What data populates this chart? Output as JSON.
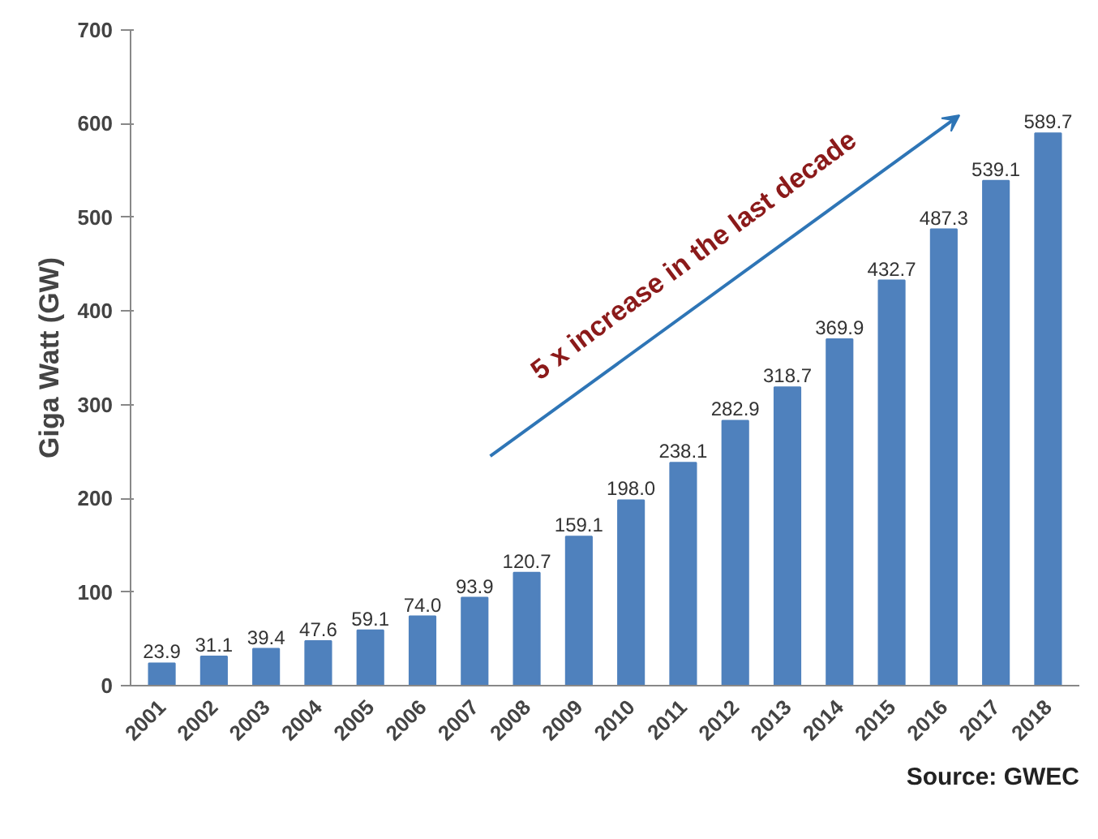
{
  "chart_data": {
    "type": "bar",
    "ylabel": "Giga Watt (GW)",
    "categories": [
      "2001",
      "2002",
      "2003",
      "2004",
      "2005",
      "2006",
      "2007",
      "2008",
      "2009",
      "2010",
      "2011",
      "2012",
      "2013",
      "2014",
      "2015",
      "2016",
      "2017",
      "2018"
    ],
    "values": [
      23.9,
      31.1,
      39.4,
      47.6,
      59.1,
      74.0,
      93.9,
      120.7,
      159.1,
      198.0,
      238.1,
      282.9,
      318.7,
      369.9,
      432.7,
      487.3,
      539.1,
      589.7
    ],
    "color": "#4f81bd",
    "ylim": [
      0,
      700
    ],
    "yticks": [
      0,
      100,
      200,
      300,
      400,
      500,
      600,
      700
    ],
    "grid": false,
    "value_labels": [
      "23.9",
      "31.1",
      "39.4",
      "47.6",
      "59.1",
      "74.0",
      "93.9",
      "120.7",
      "159.1",
      "198.0",
      "238.1",
      "282.9",
      "318.7",
      "369.9",
      "432.7",
      "487.3",
      "539.1",
      "589.7"
    ],
    "annotations": [
      "5 x  increase in the last decade",
      "Source: GWEC"
    ]
  }
}
